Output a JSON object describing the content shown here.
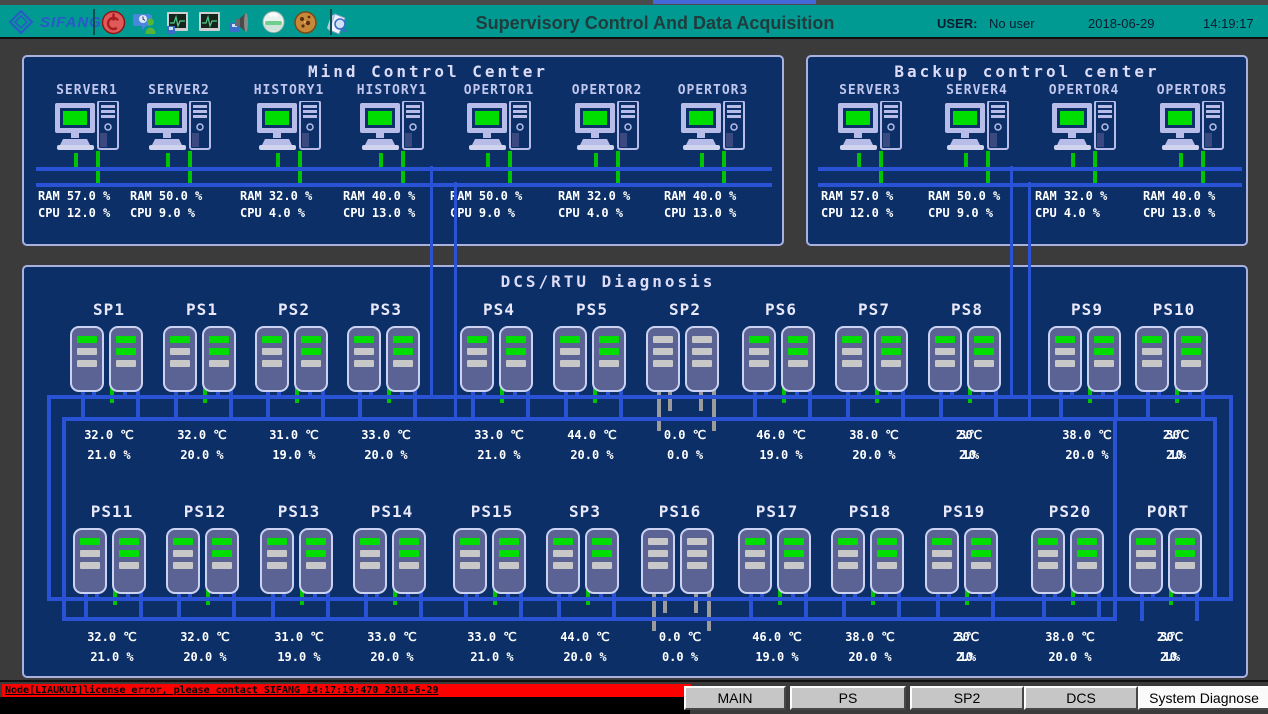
{
  "header": {
    "brand": "SIFANG",
    "title": "Supervisory Control And Data Acquisition",
    "user_label": "USER:",
    "user_value": "No user",
    "date": "2018-06-29",
    "time": "14:19:17",
    "toolbar_icons": [
      "power-icon",
      "operator-message-icon",
      "monitor-trend-save-icon",
      "monitor-trend-icon",
      "speaker-save-icon",
      "helmet-icon",
      "cookie-icon",
      "doc-magnifier-icon"
    ]
  },
  "mind_center": {
    "title": "Mind Control Center",
    "computers": [
      {
        "label": "SERVER1",
        "ram": "RAM 57.0 %",
        "cpu": "CPU 12.0 %"
      },
      {
        "label": "SERVER2",
        "ram": "RAM 50.0 %",
        "cpu": "CPU 9.0  %"
      },
      {
        "label": "HISTORY1",
        "ram": "RAM 32.0 %",
        "cpu": "CPU 4.0  %"
      },
      {
        "label": "HISTORY1",
        "ram": "RAM 40.0 %",
        "cpu": "CPU 13.0 %"
      },
      {
        "label": "OPERTOR1",
        "ram": "RAM 50.0 %",
        "cpu": "CPU 9.0  %"
      },
      {
        "label": "OPERTOR2",
        "ram": "RAM 32.0 %",
        "cpu": "CPU 4.0  %"
      },
      {
        "label": "OPERTOR3",
        "ram": "RAM 40.0 %",
        "cpu": "CPU 13.0 %"
      }
    ]
  },
  "backup_center": {
    "title": "Backup control center",
    "computers": [
      {
        "label": "SERVER3",
        "ram": "RAM 57.0 %",
        "cpu": "CPU 12.0 %"
      },
      {
        "label": "SERVER4",
        "ram": "RAM 50.0 %",
        "cpu": "CPU 9.0  %"
      },
      {
        "label": "OPERTOR4",
        "ram": "RAM 32.0 %",
        "cpu": "CPU 4.0  %"
      },
      {
        "label": "OPERTOR5",
        "ram": "RAM 40.0 %",
        "cpu": "CPU 13.0 %"
      }
    ]
  },
  "dcs": {
    "title": "DCS/RTU Diagnosis",
    "row1": [
      {
        "label": "SP1",
        "temp": "32.0 ℃",
        "humidity": "21.0 %",
        "online": true
      },
      {
        "label": "PS1",
        "temp": "32.0 ℃",
        "humidity": "20.0 %",
        "online": true
      },
      {
        "label": "PS2",
        "temp": "31.0 ℃",
        "humidity": "19.0 %",
        "online": true
      },
      {
        "label": "PS3",
        "temp": "33.0 ℃",
        "humidity": "20.0 %",
        "online": true
      },
      {
        "label": "PS4",
        "temp": "33.0 ℃",
        "humidity": "21.0 %",
        "online": true
      },
      {
        "label": "PS5",
        "temp": "44.0 ℃",
        "humidity": "20.0 %",
        "online": true
      },
      {
        "label": "SP2",
        "temp": "0.0  ℃",
        "humidity": "0.0  %",
        "online": false
      },
      {
        "label": "PS6",
        "temp": "46.0 ℃",
        "humidity": "19.0 %",
        "online": true
      },
      {
        "label": "PS7",
        "temp": "38.0 ℃",
        "humidity": "20.0 %",
        "online": true
      },
      {
        "label": "PS8",
        "temp": "23.0℃",
        "humidity": "21.0%",
        "online": true,
        "condensed": true
      },
      {
        "label": "PS9",
        "temp": "38.0 ℃",
        "humidity": "20.0 %",
        "online": true
      },
      {
        "label": "PS10",
        "temp": "23.0℃",
        "humidity": "21.0%",
        "online": true,
        "condensed": true
      }
    ],
    "row2": [
      {
        "label": "PS11",
        "temp": "32.0 ℃",
        "humidity": "21.0 %",
        "online": true
      },
      {
        "label": "PS12",
        "temp": "32.0 ℃",
        "humidity": "20.0 %",
        "online": true
      },
      {
        "label": "PS13",
        "temp": "31.0 ℃",
        "humidity": "19.0 %",
        "online": true
      },
      {
        "label": "PS14",
        "temp": "33.0 ℃",
        "humidity": "20.0 %",
        "online": true
      },
      {
        "label": "PS15",
        "temp": "33.0 ℃",
        "humidity": "21.0 %",
        "online": true
      },
      {
        "label": "SP3",
        "temp": "44.0 ℃",
        "humidity": "20.0 %",
        "online": true
      },
      {
        "label": "PS16",
        "temp": "0.0  ℃",
        "humidity": "0.0  %",
        "online": false
      },
      {
        "label": "PS17",
        "temp": "46.0 ℃",
        "humidity": "19.0 %",
        "online": true
      },
      {
        "label": "PS18",
        "temp": "38.0 ℃",
        "humidity": "20.0 %",
        "online": true
      },
      {
        "label": "PS19",
        "temp": "23.0℃",
        "humidity": "21.0%",
        "online": true,
        "condensed": true
      },
      {
        "label": "PS20",
        "temp": "38.0 ℃",
        "humidity": "20.0 %",
        "online": true
      },
      {
        "label": "PORT",
        "temp": "23.0℃",
        "humidity": "21.0%",
        "online": true,
        "condensed": true
      }
    ]
  },
  "statusbar": {
    "alarm": "Node[LIAUKUI]license error, please contact SIFANG 14:17:19:470 2018-6-29"
  },
  "nav": {
    "buttons": [
      {
        "label": "MAIN",
        "active": false
      },
      {
        "label": "PS",
        "active": false
      },
      {
        "label": "SP2",
        "active": false
      },
      {
        "label": "DCS",
        "active": false
      },
      {
        "label": "System Diagnose",
        "active": true
      }
    ]
  },
  "colors": {
    "topbar_teal": "#009a92",
    "panel_navy": "#0b2f66",
    "panel_border": "#a9b2df",
    "bus_blue": "#2952d4",
    "ok_green": "#00c400",
    "offline_gray": "#9c9c9c",
    "alarm_red": "#ff0000",
    "background": "#3b3b3b"
  }
}
